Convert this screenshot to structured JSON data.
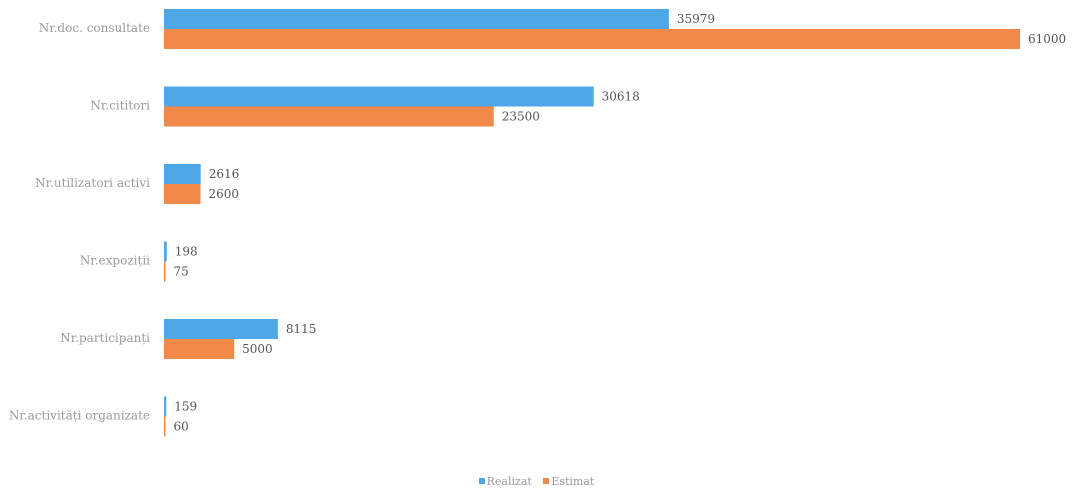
{
  "chart_data": {
    "type": "bar",
    "orientation": "horizontal",
    "categories": [
      "Nr.doc. consultate",
      "Nr.cititori",
      "Nr.utilizatori activi",
      "Nr.expoziții",
      "Nr.participanți",
      "Nr.activități organizate"
    ],
    "series": [
      {
        "name": "Realizat",
        "color": "#4ea7e6",
        "values": [
          35979,
          30618,
          2616,
          198,
          8115,
          159
        ]
      },
      {
        "name": "Estimat",
        "color": "#f0894a",
        "values": [
          61000,
          23500,
          2600,
          75,
          5000,
          60
        ]
      }
    ],
    "xlim": [
      0,
      61000
    ],
    "grid": false,
    "legend_position": "bottom"
  }
}
